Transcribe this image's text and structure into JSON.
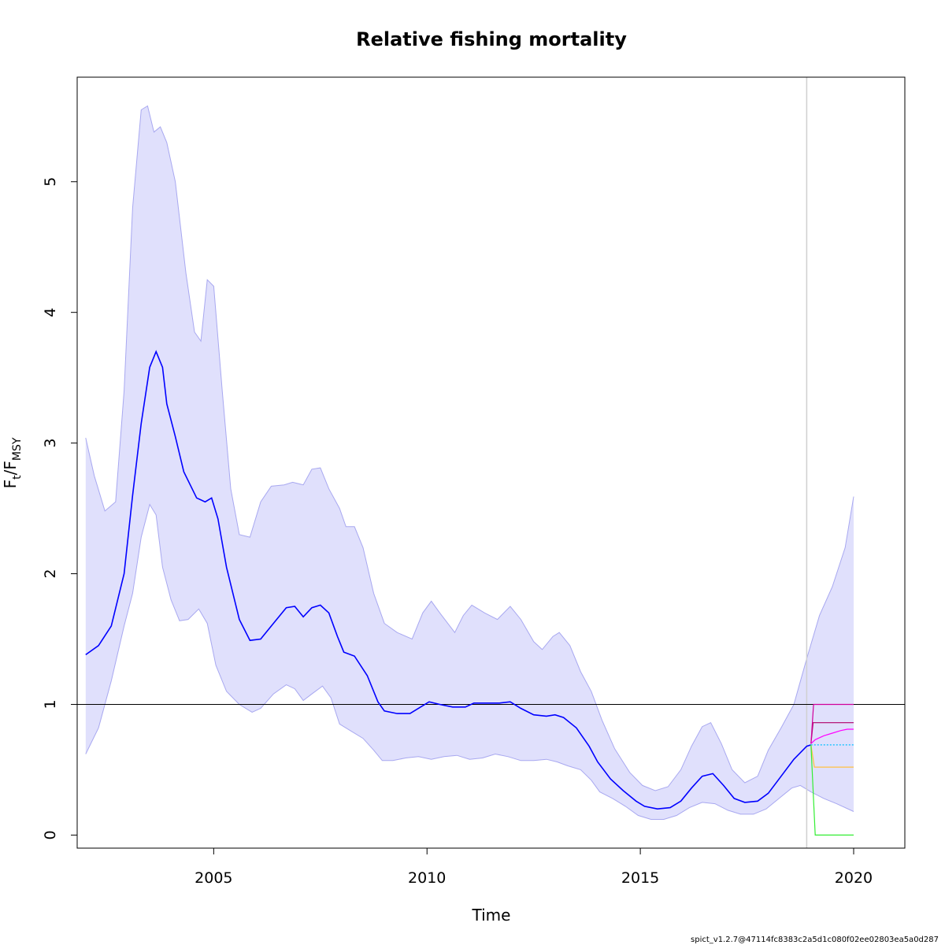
{
  "chart_data": {
    "type": "line",
    "title": "Relative fishing mortality",
    "xlabel": "Time",
    "ylabel": {
      "base": "F",
      "num_sub": "t",
      "slash": "/",
      "den": "F",
      "den_sub": "MSY"
    },
    "footer": "spict_v1.2.7@47114fc8383c2a5d1c080f02ee02803ea5a0d287",
    "xlim": [
      2001.8,
      2021.2
    ],
    "ylim": [
      -0.1,
      5.8
    ],
    "xticks": [
      2005,
      2010,
      2015,
      2020
    ],
    "xtick_labels": [
      "2005",
      "2010",
      "2015",
      "2020"
    ],
    "yticks": [
      0,
      1,
      2,
      3,
      4,
      5
    ],
    "ytick_labels": [
      "0",
      "1",
      "2",
      "3",
      "4",
      "5"
    ],
    "reference_line_y": 1,
    "vertical_line_x": 2018.9,
    "grid": false,
    "colors": {
      "estimate": "#0000ff",
      "band_fill": "#e0e0fc",
      "band_edge": "#a8a8f0",
      "reference": "#000000",
      "vline": "#d0d0d0"
    },
    "series": [
      {
        "values": [
          [
            2002.0,
            1.38
          ],
          [
            2002.3,
            1.45
          ],
          [
            2002.6,
            1.6
          ],
          [
            2002.9,
            2.0
          ],
          [
            2003.1,
            2.6
          ],
          [
            2003.3,
            3.15
          ],
          [
            2003.5,
            3.58
          ],
          [
            2003.65,
            3.7
          ],
          [
            2003.8,
            3.58
          ],
          [
            2003.9,
            3.3
          ],
          [
            2004.1,
            3.05
          ],
          [
            2004.3,
            2.78
          ],
          [
            2004.6,
            2.58
          ],
          [
            2004.8,
            2.55
          ],
          [
            2004.95,
            2.58
          ],
          [
            2005.1,
            2.42
          ],
          [
            2005.3,
            2.05
          ],
          [
            2005.6,
            1.65
          ],
          [
            2005.85,
            1.49
          ],
          [
            2006.1,
            1.5
          ],
          [
            2006.4,
            1.62
          ],
          [
            2006.7,
            1.74
          ],
          [
            2006.9,
            1.75
          ],
          [
            2007.1,
            1.67
          ],
          [
            2007.3,
            1.74
          ],
          [
            2007.5,
            1.76
          ],
          [
            2007.7,
            1.7
          ],
          [
            2007.9,
            1.52
          ],
          [
            2008.05,
            1.4
          ],
          [
            2008.3,
            1.37
          ],
          [
            2008.6,
            1.22
          ],
          [
            2008.85,
            1.02
          ],
          [
            2009.0,
            0.95
          ],
          [
            2009.3,
            0.93
          ],
          [
            2009.6,
            0.93
          ],
          [
            2009.85,
            0.98
          ],
          [
            2010.05,
            1.02
          ],
          [
            2010.3,
            1.0
          ],
          [
            2010.6,
            0.98
          ],
          [
            2010.9,
            0.98
          ],
          [
            2011.1,
            1.01
          ],
          [
            2011.4,
            1.01
          ],
          [
            2011.7,
            1.01
          ],
          [
            2011.95,
            1.02
          ],
          [
            2012.2,
            0.97
          ],
          [
            2012.5,
            0.92
          ],
          [
            2012.8,
            0.91
          ],
          [
            2013.0,
            0.92
          ],
          [
            2013.2,
            0.9
          ],
          [
            2013.5,
            0.82
          ],
          [
            2013.8,
            0.68
          ],
          [
            2014.0,
            0.56
          ],
          [
            2014.3,
            0.43
          ],
          [
            2014.6,
            0.34
          ],
          [
            2014.9,
            0.26
          ],
          [
            2015.1,
            0.22
          ],
          [
            2015.4,
            0.2
          ],
          [
            2015.7,
            0.21
          ],
          [
            2015.95,
            0.26
          ],
          [
            2016.2,
            0.36
          ],
          [
            2016.45,
            0.45
          ],
          [
            2016.7,
            0.47
          ],
          [
            2016.95,
            0.38
          ],
          [
            2017.2,
            0.28
          ],
          [
            2017.45,
            0.25
          ],
          [
            2017.75,
            0.26
          ],
          [
            2018.0,
            0.32
          ],
          [
            2018.3,
            0.45
          ],
          [
            2018.6,
            0.58
          ],
          [
            2018.9,
            0.68
          ],
          [
            2019.0,
            0.69
          ]
        ]
      },
      {
        "role": "upper",
        "values": [
          [
            2002.0,
            3.04
          ],
          [
            2002.2,
            2.75
          ],
          [
            2002.45,
            2.48
          ],
          [
            2002.7,
            2.55
          ],
          [
            2002.9,
            3.4
          ],
          [
            2003.1,
            4.8
          ],
          [
            2003.3,
            5.55
          ],
          [
            2003.45,
            5.58
          ],
          [
            2003.6,
            5.38
          ],
          [
            2003.75,
            5.42
          ],
          [
            2003.9,
            5.3
          ],
          [
            2004.1,
            5.0
          ],
          [
            2004.35,
            4.3
          ],
          [
            2004.55,
            3.85
          ],
          [
            2004.7,
            3.78
          ],
          [
            2004.85,
            4.25
          ],
          [
            2005.0,
            4.2
          ],
          [
            2005.2,
            3.4
          ],
          [
            2005.4,
            2.65
          ],
          [
            2005.6,
            2.3
          ],
          [
            2005.85,
            2.28
          ],
          [
            2006.1,
            2.55
          ],
          [
            2006.35,
            2.67
          ],
          [
            2006.65,
            2.68
          ],
          [
            2006.85,
            2.7
          ],
          [
            2007.1,
            2.68
          ],
          [
            2007.3,
            2.8
          ],
          [
            2007.5,
            2.81
          ],
          [
            2007.7,
            2.65
          ],
          [
            2007.95,
            2.5
          ],
          [
            2008.1,
            2.36
          ],
          [
            2008.3,
            2.36
          ],
          [
            2008.5,
            2.2
          ],
          [
            2008.75,
            1.85
          ],
          [
            2009.0,
            1.62
          ],
          [
            2009.3,
            1.55
          ],
          [
            2009.65,
            1.5
          ],
          [
            2009.9,
            1.7
          ],
          [
            2010.1,
            1.79
          ],
          [
            2010.3,
            1.7
          ],
          [
            2010.65,
            1.55
          ],
          [
            2010.85,
            1.68
          ],
          [
            2011.05,
            1.76
          ],
          [
            2011.35,
            1.7
          ],
          [
            2011.65,
            1.65
          ],
          [
            2011.95,
            1.75
          ],
          [
            2012.2,
            1.65
          ],
          [
            2012.5,
            1.48
          ],
          [
            2012.7,
            1.42
          ],
          [
            2012.95,
            1.52
          ],
          [
            2013.1,
            1.55
          ],
          [
            2013.35,
            1.45
          ],
          [
            2013.6,
            1.25
          ],
          [
            2013.85,
            1.1
          ],
          [
            2014.1,
            0.88
          ],
          [
            2014.4,
            0.66
          ],
          [
            2014.75,
            0.48
          ],
          [
            2015.05,
            0.38
          ],
          [
            2015.35,
            0.34
          ],
          [
            2015.65,
            0.37
          ],
          [
            2015.95,
            0.5
          ],
          [
            2016.2,
            0.68
          ],
          [
            2016.45,
            0.83
          ],
          [
            2016.65,
            0.86
          ],
          [
            2016.9,
            0.7
          ],
          [
            2017.15,
            0.5
          ],
          [
            2017.45,
            0.4
          ],
          [
            2017.75,
            0.45
          ],
          [
            2018.0,
            0.65
          ],
          [
            2018.3,
            0.82
          ],
          [
            2018.6,
            1.0
          ],
          [
            2018.9,
            1.35
          ],
          [
            2019.2,
            1.68
          ],
          [
            2019.5,
            1.9
          ],
          [
            2019.8,
            2.2
          ],
          [
            2020.0,
            2.59
          ]
        ]
      },
      {
        "role": "lower",
        "values": [
          [
            2002.0,
            0.62
          ],
          [
            2002.3,
            0.82
          ],
          [
            2002.6,
            1.18
          ],
          [
            2002.9,
            1.6
          ],
          [
            2003.1,
            1.85
          ],
          [
            2003.3,
            2.28
          ],
          [
            2003.5,
            2.53
          ],
          [
            2003.65,
            2.45
          ],
          [
            2003.8,
            2.05
          ],
          [
            2004.0,
            1.8
          ],
          [
            2004.2,
            1.64
          ],
          [
            2004.4,
            1.65
          ],
          [
            2004.65,
            1.73
          ],
          [
            2004.85,
            1.62
          ],
          [
            2005.05,
            1.3
          ],
          [
            2005.3,
            1.1
          ],
          [
            2005.6,
            1.0
          ],
          [
            2005.9,
            0.94
          ],
          [
            2006.1,
            0.97
          ],
          [
            2006.4,
            1.08
          ],
          [
            2006.7,
            1.15
          ],
          [
            2006.9,
            1.12
          ],
          [
            2007.1,
            1.03
          ],
          [
            2007.3,
            1.08
          ],
          [
            2007.55,
            1.14
          ],
          [
            2007.75,
            1.05
          ],
          [
            2007.95,
            0.85
          ],
          [
            2008.2,
            0.8
          ],
          [
            2008.5,
            0.74
          ],
          [
            2008.75,
            0.65
          ],
          [
            2008.95,
            0.57
          ],
          [
            2009.2,
            0.57
          ],
          [
            2009.5,
            0.59
          ],
          [
            2009.8,
            0.6
          ],
          [
            2010.1,
            0.58
          ],
          [
            2010.4,
            0.6
          ],
          [
            2010.7,
            0.61
          ],
          [
            2011.0,
            0.58
          ],
          [
            2011.3,
            0.59
          ],
          [
            2011.6,
            0.62
          ],
          [
            2011.9,
            0.6
          ],
          [
            2012.2,
            0.57
          ],
          [
            2012.5,
            0.57
          ],
          [
            2012.8,
            0.58
          ],
          [
            2013.05,
            0.56
          ],
          [
            2013.3,
            0.53
          ],
          [
            2013.6,
            0.5
          ],
          [
            2013.85,
            0.42
          ],
          [
            2014.05,
            0.33
          ],
          [
            2014.35,
            0.28
          ],
          [
            2014.65,
            0.22
          ],
          [
            2014.95,
            0.15
          ],
          [
            2015.25,
            0.12
          ],
          [
            2015.55,
            0.12
          ],
          [
            2015.85,
            0.15
          ],
          [
            2016.15,
            0.21
          ],
          [
            2016.45,
            0.25
          ],
          [
            2016.75,
            0.24
          ],
          [
            2017.05,
            0.19
          ],
          [
            2017.35,
            0.16
          ],
          [
            2017.65,
            0.16
          ],
          [
            2017.95,
            0.2
          ],
          [
            2018.25,
            0.28
          ],
          [
            2018.55,
            0.36
          ],
          [
            2018.75,
            0.38
          ],
          [
            2019.0,
            0.33
          ],
          [
            2019.3,
            0.28
          ],
          [
            2019.6,
            0.24
          ],
          [
            2020.0,
            0.18
          ]
        ]
      },
      {
        "color": "#ff00ff",
        "values": [
          [
            2019.0,
            0.7
          ],
          [
            2019.1,
            0.73
          ],
          [
            2019.3,
            0.76
          ],
          [
            2019.5,
            0.78
          ],
          [
            2019.7,
            0.8
          ],
          [
            2019.85,
            0.81
          ],
          [
            2020.0,
            0.81
          ]
        ]
      },
      {
        "color": "#b0006a",
        "values": [
          [
            2019.0,
            0.7
          ],
          [
            2019.05,
            0.86
          ],
          [
            2020.0,
            0.86
          ]
        ]
      },
      {
        "color": "#d0009a",
        "values": [
          [
            2019.0,
            0.7
          ],
          [
            2019.06,
            1.0
          ],
          [
            2020.0,
            1.0
          ]
        ]
      },
      {
        "color": "#00bfff",
        "dashed": true,
        "values": [
          [
            2019.0,
            0.69
          ],
          [
            2020.0,
            0.69
          ]
        ]
      },
      {
        "color": "#ffc040",
        "values": [
          [
            2019.0,
            0.69
          ],
          [
            2019.08,
            0.52
          ],
          [
            2020.0,
            0.52
          ]
        ]
      },
      {
        "color": "#33ee33",
        "values": [
          [
            2019.0,
            0.69
          ],
          [
            2019.1,
            0.0
          ],
          [
            2020.0,
            0.0
          ]
        ]
      }
    ]
  }
}
